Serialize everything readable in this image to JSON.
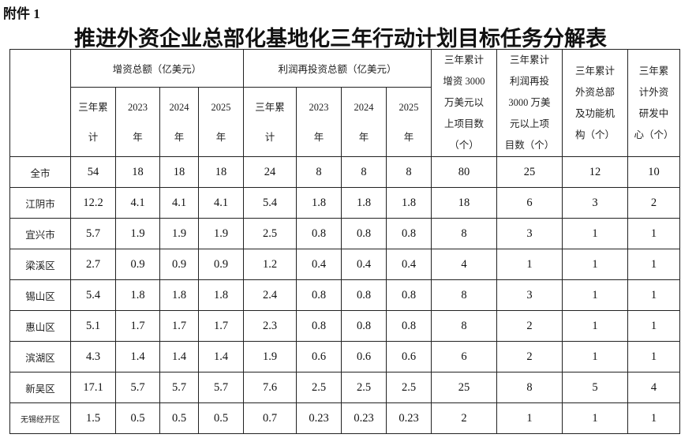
{
  "annex_label": "附件 1",
  "title": "推进外资企业总部化基地化三年行动计划目标任务分解表",
  "table": {
    "group_headers": {
      "capital_increase": "增资总额（亿美元）",
      "profit_reinvest": "利润再投资总额（亿美元）"
    },
    "side_headers": [
      {
        "lines": [
          "三年累计",
          "增资 3000",
          "万美元以",
          "上项目数",
          "（个）"
        ]
      },
      {
        "lines": [
          "三年累计",
          "利润再投",
          "3000 万美",
          "元以上项",
          "目数（个）"
        ]
      },
      {
        "lines": [
          "三年累计",
          "外资总部",
          "及功能机",
          "构（个）"
        ]
      },
      {
        "lines": [
          "三年累",
          "计外资",
          "研发中",
          "心（个）"
        ]
      }
    ],
    "sub_headers": [
      {
        "lines": [
          "三年累",
          "计"
        ]
      },
      {
        "lines": [
          "2023",
          "年"
        ]
      },
      {
        "lines": [
          "2024",
          "年"
        ]
      },
      {
        "lines": [
          "2025",
          "年"
        ]
      },
      {
        "lines": [
          "三年累",
          "计"
        ]
      },
      {
        "lines": [
          "2023",
          "年"
        ]
      },
      {
        "lines": [
          "2024",
          "年"
        ]
      },
      {
        "lines": [
          "2025",
          "年"
        ]
      }
    ],
    "rows": [
      {
        "region": "全市",
        "values": [
          "54",
          "18",
          "18",
          "18",
          "24",
          "8",
          "8",
          "8",
          "80",
          "25",
          "12",
          "10"
        ]
      },
      {
        "region": "江阴市",
        "values": [
          "12.2",
          "4.1",
          "4.1",
          "4.1",
          "5.4",
          "1.8",
          "1.8",
          "1.8",
          "18",
          "6",
          "3",
          "2"
        ]
      },
      {
        "region": "宜兴市",
        "values": [
          "5.7",
          "1.9",
          "1.9",
          "1.9",
          "2.5",
          "0.8",
          "0.8",
          "0.8",
          "8",
          "3",
          "1",
          "1"
        ]
      },
      {
        "region": "梁溪区",
        "values": [
          "2.7",
          "0.9",
          "0.9",
          "0.9",
          "1.2",
          "0.4",
          "0.4",
          "0.4",
          "4",
          "1",
          "1",
          "1"
        ]
      },
      {
        "region": "锡山区",
        "values": [
          "5.4",
          "1.8",
          "1.8",
          "1.8",
          "2.4",
          "0.8",
          "0.8",
          "0.8",
          "8",
          "3",
          "1",
          "1"
        ]
      },
      {
        "region": "惠山区",
        "values": [
          "5.1",
          "1.7",
          "1.7",
          "1.7",
          "2.3",
          "0.8",
          "0.8",
          "0.8",
          "8",
          "2",
          "1",
          "1"
        ]
      },
      {
        "region": "滨湖区",
        "values": [
          "4.3",
          "1.4",
          "1.4",
          "1.4",
          "1.9",
          "0.6",
          "0.6",
          "0.6",
          "6",
          "2",
          "1",
          "1"
        ]
      },
      {
        "region": "新吴区",
        "values": [
          "17.1",
          "5.7",
          "5.7",
          "5.7",
          "7.6",
          "2.5",
          "2.5",
          "2.5",
          "25",
          "8",
          "5",
          "4"
        ]
      },
      {
        "region": "无锡经开区",
        "values": [
          "1.5",
          "0.5",
          "0.5",
          "0.5",
          "0.7",
          "0.23",
          "0.23",
          "0.23",
          "2",
          "1",
          "1",
          "1"
        ]
      }
    ]
  }
}
